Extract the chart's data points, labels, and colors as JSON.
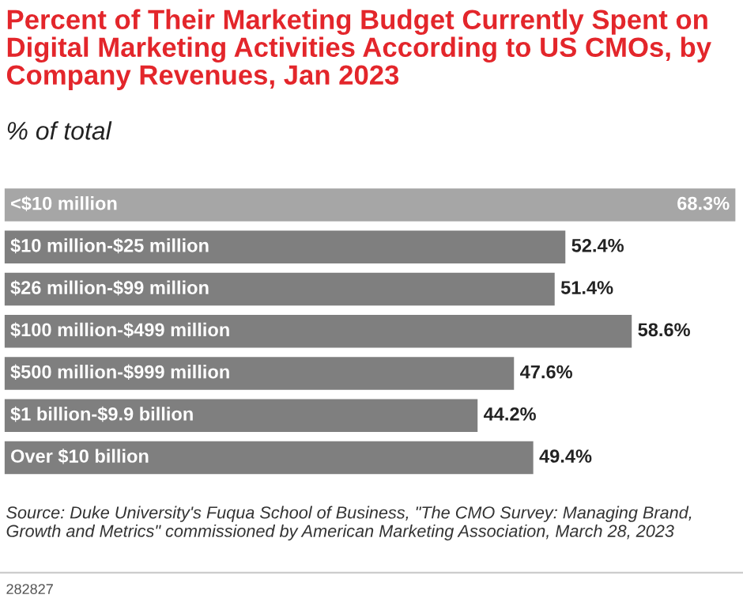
{
  "chart_data": {
    "type": "bar",
    "orientation": "horizontal",
    "title": "Percent of Their Marketing Budget Currently Spent on Digital Marketing Activities According to US CMOs, by Company Revenues, Jan 2023",
    "subtitle": "% of total",
    "categories": [
      "<$10 million",
      "$10 million-$25 million",
      "$26 million-$99 million",
      "$100 million-$499 million",
      "$500 million-$999 million",
      "$1 billion-$9.9 billion",
      "Over $10 billion"
    ],
    "values": [
      68.3,
      52.4,
      51.4,
      58.6,
      47.6,
      44.2,
      49.4
    ],
    "colors": [
      "#a6a6a6",
      "#7f7f7f",
      "#7f7f7f",
      "#7f7f7f",
      "#7f7f7f",
      "#7f7f7f",
      "#7f7f7f"
    ],
    "value_labels": [
      "68.3%",
      "52.4%",
      "51.4%",
      "58.6%",
      "47.6%",
      "44.2%",
      "49.4%"
    ],
    "annotations": [
      "Source: Duke University's Fuqua School of Business, \"The CMO Survey: Managing Brand, Growth and Metrics\" commissioned by American Marketing Association, March 28, 2023",
      "282827"
    ],
    "data_labels": false
  }
}
